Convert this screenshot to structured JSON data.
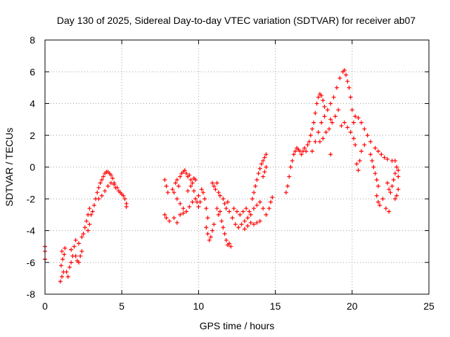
{
  "chart_data": {
    "type": "scatter",
    "title": "Day 130 of 2025, Sidereal Day-to-day VTEC variation (SDTVAR) for receiver ab07",
    "xlabel": "GPS time / hours",
    "ylabel": "SDTVAR / TECUs",
    "xlim": [
      0,
      25
    ],
    "ylim": [
      -8,
      8
    ],
    "xticks": [
      0,
      5,
      10,
      15,
      20,
      25
    ],
    "yticks": [
      -8,
      -6,
      -4,
      -2,
      0,
      2,
      4,
      6,
      8
    ],
    "grid": true,
    "marker": "plus",
    "color": "#ff0000",
    "series": [
      {
        "name": "SDTVAR",
        "points": [
          [
            0.0,
            -5.0
          ],
          [
            0.0,
            -5.3
          ],
          [
            0.0,
            -5.8
          ],
          [
            1.0,
            -7.2
          ],
          [
            1.1,
            -6.9
          ],
          [
            1.2,
            -6.6
          ],
          [
            1.05,
            -6.2
          ],
          [
            1.15,
            -5.8
          ],
          [
            1.25,
            -5.5
          ],
          [
            1.1,
            -5.3
          ],
          [
            1.3,
            -5.1
          ],
          [
            1.4,
            -6.6
          ],
          [
            1.5,
            -6.9
          ],
          [
            1.6,
            -6.3
          ],
          [
            1.7,
            -6.0
          ],
          [
            1.8,
            -5.6
          ],
          [
            1.7,
            -5.2
          ],
          [
            1.9,
            -5.0
          ],
          [
            2.0,
            -4.6
          ],
          [
            2.0,
            -5.6
          ],
          [
            2.1,
            -5.9
          ],
          [
            2.2,
            -6.0
          ],
          [
            2.3,
            -5.6
          ],
          [
            2.4,
            -5.3
          ],
          [
            2.2,
            -4.8
          ],
          [
            2.4,
            -4.4
          ],
          [
            2.5,
            -4.2
          ],
          [
            2.6,
            -3.8
          ],
          [
            2.7,
            -3.4
          ],
          [
            2.8,
            -3.0
          ],
          [
            2.9,
            -2.6
          ],
          [
            2.8,
            -4.0
          ],
          [
            2.9,
            -3.6
          ],
          [
            3.0,
            -3.0
          ],
          [
            3.1,
            -2.8
          ],
          [
            3.2,
            -2.4
          ],
          [
            3.3,
            -2.0
          ],
          [
            3.4,
            -1.6
          ],
          [
            3.5,
            -1.3
          ],
          [
            3.6,
            -1.0
          ],
          [
            3.7,
            -0.8
          ],
          [
            3.8,
            -0.6
          ],
          [
            3.9,
            -0.4
          ],
          [
            4.0,
            -0.3
          ],
          [
            4.1,
            -0.3
          ],
          [
            4.2,
            -0.4
          ],
          [
            4.3,
            -0.5
          ],
          [
            4.4,
            -0.7
          ],
          [
            4.5,
            -1.0
          ],
          [
            4.6,
            -1.3
          ],
          [
            3.5,
            -2.0
          ],
          [
            3.7,
            -1.8
          ],
          [
            3.9,
            -1.5
          ],
          [
            4.1,
            -1.2
          ],
          [
            4.3,
            -1.0
          ],
          [
            4.5,
            -1.1
          ],
          [
            4.7,
            -1.3
          ],
          [
            4.8,
            -1.5
          ],
          [
            4.9,
            -1.6
          ],
          [
            5.0,
            -1.7
          ],
          [
            5.1,
            -1.8
          ],
          [
            5.2,
            -2.0
          ],
          [
            5.3,
            -2.3
          ],
          [
            5.3,
            -2.5
          ],
          [
            7.8,
            -0.8
          ],
          [
            7.9,
            -1.2
          ],
          [
            8.0,
            -1.6
          ],
          [
            7.8,
            -3.0
          ],
          [
            7.9,
            -3.2
          ],
          [
            8.1,
            -3.4
          ],
          [
            8.3,
            -1.4
          ],
          [
            8.4,
            -1.6
          ],
          [
            8.5,
            -1.0
          ],
          [
            8.6,
            -0.8
          ],
          [
            8.7,
            -1.2
          ],
          [
            8.8,
            -0.6
          ],
          [
            8.9,
            -0.4
          ],
          [
            9.0,
            -0.3
          ],
          [
            9.1,
            -0.2
          ],
          [
            9.2,
            -0.4
          ],
          [
            9.3,
            -0.6
          ],
          [
            9.4,
            -0.5
          ],
          [
            9.5,
            -0.8
          ],
          [
            9.6,
            -1.0
          ],
          [
            9.7,
            -0.7
          ],
          [
            9.8,
            -0.8
          ],
          [
            8.6,
            -2.0
          ],
          [
            8.8,
            -2.3
          ],
          [
            9.0,
            -2.6
          ],
          [
            9.2,
            -2.8
          ],
          [
            9.4,
            -2.5
          ],
          [
            9.6,
            -2.2
          ],
          [
            9.8,
            -2.0
          ],
          [
            10.0,
            -1.8
          ],
          [
            8.4,
            -3.2
          ],
          [
            8.6,
            -3.5
          ],
          [
            8.8,
            -3.0
          ],
          [
            9.0,
            -2.9
          ],
          [
            9.3,
            -1.5
          ],
          [
            9.5,
            -1.2
          ],
          [
            9.7,
            -1.5
          ],
          [
            9.9,
            -2.2
          ],
          [
            10.0,
            -2.5
          ],
          [
            10.1,
            -2.2
          ],
          [
            10.2,
            -1.4
          ],
          [
            10.3,
            -1.6
          ],
          [
            10.4,
            -2.0
          ],
          [
            10.5,
            -2.6
          ],
          [
            10.6,
            -3.2
          ],
          [
            10.5,
            -3.8
          ],
          [
            10.6,
            -4.2
          ],
          [
            10.7,
            -4.6
          ],
          [
            10.8,
            -4.4
          ],
          [
            10.9,
            -4.0
          ],
          [
            11.0,
            -3.6
          ],
          [
            10.9,
            -1.0
          ],
          [
            11.0,
            -1.2
          ],
          [
            11.1,
            -1.4
          ],
          [
            11.2,
            -1.0
          ],
          [
            11.3,
            -1.6
          ],
          [
            11.4,
            -1.8
          ],
          [
            11.2,
            -2.6
          ],
          [
            11.3,
            -3.0
          ],
          [
            11.4,
            -2.8
          ],
          [
            11.5,
            -3.4
          ],
          [
            11.6,
            -3.8
          ],
          [
            11.7,
            -4.2
          ],
          [
            11.8,
            -4.6
          ],
          [
            11.6,
            -2.0
          ],
          [
            11.7,
            -2.3
          ],
          [
            11.8,
            -2.6
          ],
          [
            11.9,
            -2.2
          ],
          [
            12.0,
            -2.8
          ],
          [
            11.9,
            -4.9
          ],
          [
            12.1,
            -5.0
          ],
          [
            12.0,
            -4.8
          ],
          [
            12.2,
            -3.2
          ],
          [
            12.4,
            -3.6
          ],
          [
            12.6,
            -3.8
          ],
          [
            12.8,
            -3.6
          ],
          [
            13.0,
            -3.4
          ],
          [
            13.2,
            -3.2
          ],
          [
            13.4,
            -3.0
          ],
          [
            12.3,
            -2.6
          ],
          [
            12.5,
            -2.8
          ],
          [
            12.7,
            -3.0
          ],
          [
            12.9,
            -2.8
          ],
          [
            13.1,
            -2.6
          ],
          [
            13.3,
            -2.8
          ],
          [
            13.0,
            -3.9
          ],
          [
            13.2,
            -3.7
          ],
          [
            13.4,
            -3.5
          ],
          [
            13.6,
            -3.6
          ],
          [
            13.8,
            -3.5
          ],
          [
            14.0,
            -3.4
          ],
          [
            13.5,
            -2.0
          ],
          [
            13.6,
            -1.6
          ],
          [
            13.7,
            -1.2
          ],
          [
            13.8,
            -0.8
          ],
          [
            13.9,
            -0.4
          ],
          [
            14.0,
            -0.1
          ],
          [
            14.1,
            0.2
          ],
          [
            14.2,
            0.4
          ],
          [
            14.3,
            0.6
          ],
          [
            14.4,
            0.8
          ],
          [
            14.2,
            -0.6
          ],
          [
            14.3,
            -0.3
          ],
          [
            14.4,
            0.0
          ],
          [
            13.6,
            -2.6
          ],
          [
            13.8,
            -2.4
          ],
          [
            14.0,
            -2.2
          ],
          [
            14.2,
            -2.6
          ],
          [
            14.4,
            -3.0
          ],
          [
            14.6,
            -2.6
          ],
          [
            14.7,
            -2.2
          ],
          [
            14.8,
            -1.9
          ],
          [
            15.7,
            -1.6
          ],
          [
            15.8,
            -1.2
          ],
          [
            15.9,
            -0.6
          ],
          [
            16.0,
            0.0
          ],
          [
            16.1,
            0.4
          ],
          [
            16.2,
            0.8
          ],
          [
            16.3,
            1.0
          ],
          [
            16.4,
            1.2
          ],
          [
            16.5,
            1.1
          ],
          [
            16.6,
            1.0
          ],
          [
            16.7,
            0.8
          ],
          [
            16.8,
            1.0
          ],
          [
            16.9,
            1.2
          ],
          [
            17.0,
            1.0
          ],
          [
            17.1,
            1.4
          ],
          [
            17.2,
            1.6
          ],
          [
            17.3,
            2.0
          ],
          [
            17.4,
            2.4
          ],
          [
            17.5,
            2.8
          ],
          [
            17.6,
            3.4
          ],
          [
            17.7,
            4.0
          ],
          [
            17.8,
            4.4
          ],
          [
            17.9,
            4.6
          ],
          [
            18.0,
            4.5
          ],
          [
            18.1,
            4.2
          ],
          [
            18.2,
            3.8
          ],
          [
            17.4,
            1.0
          ],
          [
            17.6,
            1.6
          ],
          [
            17.8,
            2.2
          ],
          [
            18.0,
            2.8
          ],
          [
            18.2,
            3.2
          ],
          [
            18.4,
            3.6
          ],
          [
            18.6,
            4.0
          ],
          [
            17.9,
            1.6
          ],
          [
            18.1,
            1.8
          ],
          [
            18.3,
            2.2
          ],
          [
            18.5,
            2.4
          ],
          [
            18.7,
            2.8
          ],
          [
            18.9,
            3.2
          ],
          [
            19.1,
            3.6
          ],
          [
            18.6,
            0.8
          ],
          [
            18.6,
            3.0
          ],
          [
            18.8,
            4.4
          ],
          [
            19.0,
            5.0
          ],
          [
            19.2,
            5.6
          ],
          [
            19.4,
            6.0
          ],
          [
            19.5,
            6.1
          ],
          [
            19.6,
            5.8
          ],
          [
            19.7,
            5.4
          ],
          [
            19.8,
            5.0
          ],
          [
            19.9,
            4.4
          ],
          [
            20.0,
            3.6
          ],
          [
            20.1,
            2.8
          ],
          [
            19.3,
            2.6
          ],
          [
            19.5,
            2.8
          ],
          [
            19.7,
            2.5
          ],
          [
            19.9,
            2.2
          ],
          [
            20.1,
            1.8
          ],
          [
            20.2,
            1.4
          ],
          [
            20.2,
            3.2
          ],
          [
            20.4,
            3.1
          ],
          [
            20.6,
            2.8
          ],
          [
            20.8,
            2.4
          ],
          [
            21.0,
            2.0
          ],
          [
            21.2,
            1.6
          ],
          [
            20.3,
            0.2
          ],
          [
            20.4,
            -0.2
          ],
          [
            20.5,
            0.4
          ],
          [
            20.6,
            1.0
          ],
          [
            20.8,
            1.4
          ],
          [
            21.2,
            0.8
          ],
          [
            21.3,
            0.4
          ],
          [
            21.4,
            0.0
          ],
          [
            21.5,
            -0.4
          ],
          [
            21.6,
            -0.8
          ],
          [
            21.7,
            -1.2
          ],
          [
            21.5,
            1.2
          ],
          [
            21.7,
            1.0
          ],
          [
            21.9,
            0.8
          ],
          [
            22.1,
            0.6
          ],
          [
            22.3,
            0.5
          ],
          [
            22.6,
            0.4
          ],
          [
            22.8,
            0.4
          ],
          [
            21.6,
            -1.8
          ],
          [
            21.7,
            -2.2
          ],
          [
            21.8,
            -2.4
          ],
          [
            22.0,
            -2.0
          ],
          [
            22.2,
            -2.6
          ],
          [
            22.4,
            -2.8
          ],
          [
            22.3,
            -1.0
          ],
          [
            22.4,
            -1.4
          ],
          [
            22.5,
            -1.6
          ],
          [
            22.6,
            -1.2
          ],
          [
            22.7,
            -0.8
          ],
          [
            22.8,
            -0.4
          ],
          [
            22.9,
            0.0
          ],
          [
            22.8,
            -2.0
          ],
          [
            22.9,
            -1.8
          ],
          [
            23.0,
            -1.4
          ],
          [
            23.0,
            -0.6
          ],
          [
            23.0,
            -0.2
          ]
        ]
      }
    ]
  }
}
